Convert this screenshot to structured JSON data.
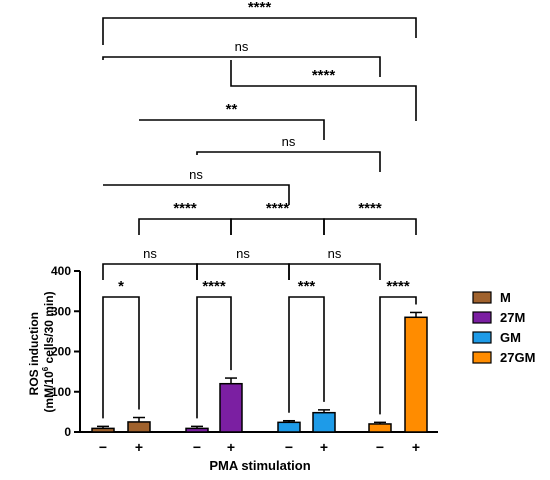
{
  "chart_data": {
    "type": "bar",
    "ylabel_line1": "ROS induction",
    "ylabel_line2_pre": "(mM/10",
    "ylabel_line2_sup": "6",
    "ylabel_line2_post": " cells/30 min)",
    "xlabel": "PMA stimulation",
    "ylim": [
      0,
      400
    ],
    "yticks": [
      0,
      100,
      200,
      300,
      400
    ],
    "bars": [
      {
        "group": "M",
        "pma": "−",
        "value": 9,
        "error": 5,
        "color": "#A0622D"
      },
      {
        "group": "M",
        "pma": "+",
        "value": 25,
        "error": 11,
        "color": "#A0622D"
      },
      {
        "group": "27M",
        "pma": "−",
        "value": 9,
        "error": 5,
        "color": "#7B1FA2"
      },
      {
        "group": "27M",
        "pma": "+",
        "value": 120,
        "error": 14,
        "color": "#7B1FA2"
      },
      {
        "group": "GM",
        "pma": "−",
        "value": 24,
        "error": 4,
        "color": "#1E9BE8"
      },
      {
        "group": "GM",
        "pma": "+",
        "value": 48,
        "error": 7,
        "color": "#1E9BE8"
      },
      {
        "group": "27GM",
        "pma": "−",
        "value": 20,
        "error": 4,
        "color": "#FF8C00"
      },
      {
        "group": "27GM",
        "pma": "+",
        "value": 285,
        "error": 12,
        "color": "#FF8C00"
      }
    ],
    "legend": [
      {
        "name": "M",
        "color": "#A0622D"
      },
      {
        "name": "27M",
        "color": "#7B1FA2"
      },
      {
        "name": "GM",
        "color": "#1E9BE8"
      },
      {
        "name": "27GM",
        "color": "#FF8C00"
      }
    ],
    "legend_position": "right",
    "grid": false,
    "significance": [
      {
        "a": 0,
        "b": 7,
        "label": "****"
      },
      {
        "a": 0,
        "b": 6,
        "label": "ns"
      },
      {
        "a": 3,
        "b": 7,
        "label": "****"
      },
      {
        "a": 1,
        "b": 5,
        "label": "**"
      },
      {
        "a": 2,
        "b": 6,
        "label": "ns"
      },
      {
        "a": 0,
        "b": 4,
        "label": "ns"
      },
      {
        "a": 1,
        "b": 3,
        "label": "****"
      },
      {
        "a": 3,
        "b": 5,
        "label": "****"
      },
      {
        "a": 5,
        "b": 7,
        "label": "****"
      },
      {
        "a": 0,
        "b": 2,
        "label": "ns"
      },
      {
        "a": 2,
        "b": 4,
        "label": "ns"
      },
      {
        "a": 4,
        "b": 6,
        "label": "ns"
      },
      {
        "a": 0,
        "b": 1,
        "label": "*"
      },
      {
        "a": 2,
        "b": 3,
        "label": "****"
      },
      {
        "a": 4,
        "b": 5,
        "label": "***"
      },
      {
        "a": 6,
        "b": 7,
        "label": "****"
      }
    ]
  }
}
